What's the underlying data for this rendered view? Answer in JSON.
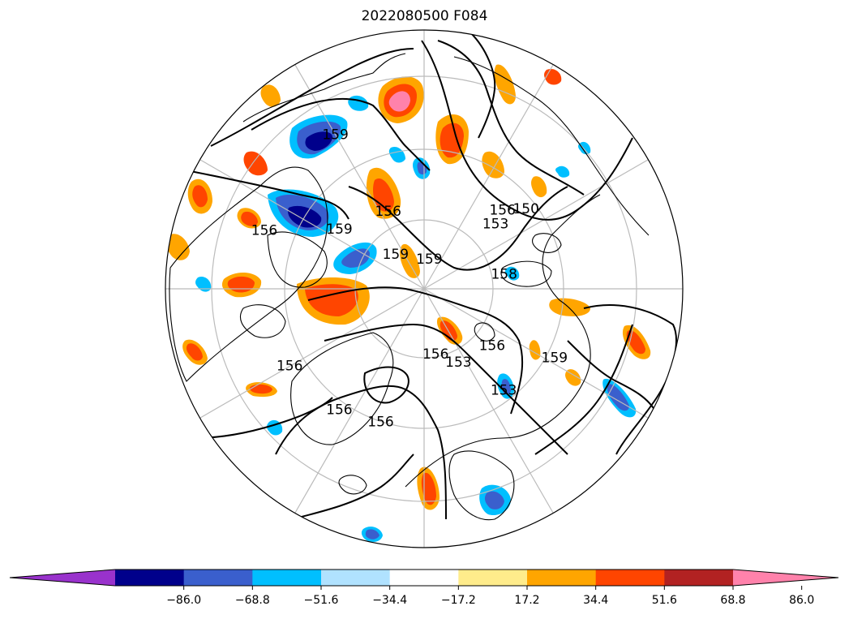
{
  "title": "2022080500 F084",
  "map": {
    "projection": "north-polar-stereographic",
    "contour_labels": [
      {
        "text": "156",
        "lat": 52,
        "lon": 198
      },
      {
        "text": "156",
        "lat": 50,
        "lon": 215
      },
      {
        "text": "156",
        "lat": 48,
        "lon": 240
      },
      {
        "text": "156",
        "lat": 72,
        "lon": 170
      },
      {
        "text": "153",
        "lat": 68,
        "lon": 155
      },
      {
        "text": "153",
        "lat": 55,
        "lon": 142
      },
      {
        "text": "156",
        "lat": 66,
        "lon": 130
      },
      {
        "text": "159",
        "lat": 50,
        "lon": 118
      },
      {
        "text": "159",
        "lat": 82,
        "lon": 10
      },
      {
        "text": "159",
        "lat": 78,
        "lon": -40
      },
      {
        "text": "158",
        "lat": 68,
        "lon": 80
      },
      {
        "text": "159",
        "lat": 62,
        "lon": -55
      },
      {
        "text": "156",
        "lat": 67,
        "lon": -25
      },
      {
        "text": "153",
        "lat": 64,
        "lon": 48
      },
      {
        "text": "156",
        "lat": 60,
        "lon": 45
      },
      {
        "text": "150",
        "lat": 55,
        "lon": 52
      },
      {
        "text": "156",
        "lat": 44,
        "lon": -70
      },
      {
        "text": "159",
        "lat": 42,
        "lon": -30
      }
    ],
    "colors": {
      "land_outline": "#000000",
      "graticule": "#bbbbbb",
      "contour": "#000000"
    }
  },
  "colorbar": {
    "colors": [
      "#9932cc",
      "#00008b",
      "#3a5fcd",
      "#00bfff",
      "#b0e2ff",
      "#ffffff",
      "#ffec8b",
      "#ffa500",
      "#ff4500",
      "#b22222",
      "#ff82ab"
    ],
    "ticks": [
      "−86.0",
      "−68.8",
      "−51.6",
      "−34.4",
      "−17.2",
      "17.2",
      "34.4",
      "51.6",
      "68.8",
      "86.0"
    ],
    "extend": "both"
  }
}
